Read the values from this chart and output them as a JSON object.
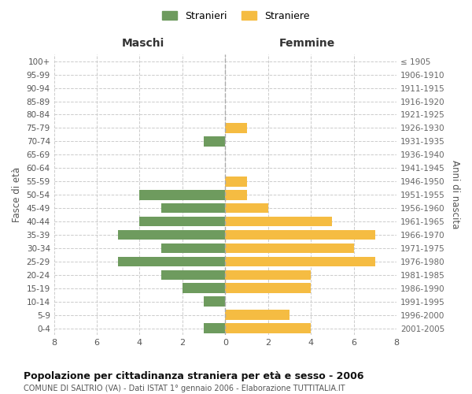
{
  "age_groups": [
    "100+",
    "95-99",
    "90-94",
    "85-89",
    "80-84",
    "75-79",
    "70-74",
    "65-69",
    "60-64",
    "55-59",
    "50-54",
    "45-49",
    "40-44",
    "35-39",
    "30-34",
    "25-29",
    "20-24",
    "15-19",
    "10-14",
    "5-9",
    "0-4"
  ],
  "birth_years": [
    "≤ 1905",
    "1906-1910",
    "1911-1915",
    "1916-1920",
    "1921-1925",
    "1926-1930",
    "1931-1935",
    "1936-1940",
    "1941-1945",
    "1946-1950",
    "1951-1955",
    "1956-1960",
    "1961-1965",
    "1966-1970",
    "1971-1975",
    "1976-1980",
    "1981-1985",
    "1986-1990",
    "1991-1995",
    "1996-2000",
    "2001-2005"
  ],
  "maschi": [
    0,
    0,
    0,
    0,
    0,
    0,
    1,
    0,
    0,
    0,
    4,
    3,
    4,
    5,
    3,
    5,
    3,
    2,
    1,
    0,
    1
  ],
  "femmine": [
    0,
    0,
    0,
    0,
    0,
    1,
    0,
    0,
    0,
    1,
    1,
    2,
    5,
    7,
    6,
    7,
    4,
    4,
    0,
    3,
    4
  ],
  "male_color": "#6e9b5e",
  "female_color": "#f5bc42",
  "male_label": "Stranieri",
  "female_label": "Straniere",
  "title": "Popolazione per cittadinanza straniera per età e sesso - 2006",
  "subtitle": "COMUNE DI SALTRIO (VA) - Dati ISTAT 1° gennaio 2006 - Elaborazione TUTTITALIA.IT",
  "xlabel_left": "Maschi",
  "xlabel_right": "Femmine",
  "ylabel_left": "Fasce di età",
  "ylabel_right": "Anni di nascita",
  "xlim": 8,
  "background_color": "#ffffff",
  "grid_color": "#cccccc",
  "bar_height": 0.75
}
